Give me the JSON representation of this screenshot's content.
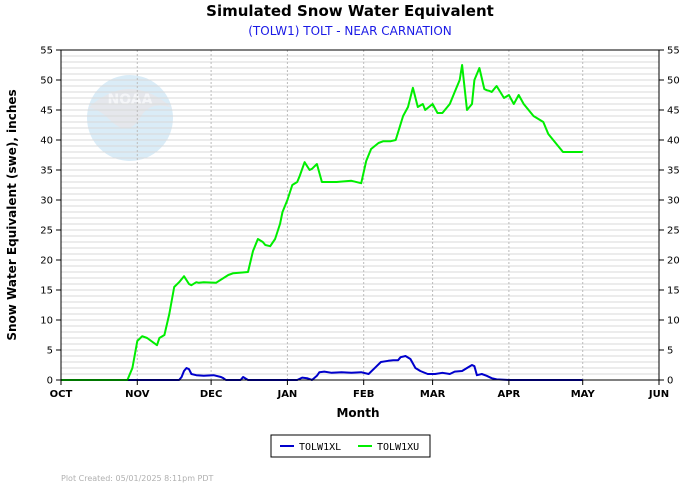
{
  "colors": {
    "lower": "#0000cc",
    "upper": "#00ee00",
    "subtitle": "#1a1ae6",
    "grid": "#d8d8d8",
    "logo_blue": "#cfe6f5",
    "logo_grey": "#e4e6ea"
  },
  "logo": {
    "text": "NOAA",
    "icon": "noaa-logo"
  },
  "footer": "Plot Created: 05/01/2025 8:11pm PDT",
  "chart_data": {
    "type": "line",
    "title": "Simulated Snow Water Equivalent",
    "subtitle": "(TOLW1) TOLT - NEAR CARNATION",
    "xlabel": "Month",
    "ylabel": "Snow Water Equivalent (swe),  inches",
    "ylim": [
      0,
      55
    ],
    "yticks": [
      0,
      5,
      10,
      15,
      20,
      25,
      30,
      35,
      40,
      45,
      50,
      55
    ],
    "month_ticks": [
      "OCT",
      "NOV",
      "DEC",
      "JAN",
      "FEB",
      "MAR",
      "APR",
      "MAY",
      "JUN"
    ],
    "month_starts": [
      "2024-10-01",
      "2024-11-01",
      "2024-12-01",
      "2025-01-01",
      "2025-02-01",
      "2025-03-01",
      "2025-04-01",
      "2025-05-01",
      "2025-06-01"
    ],
    "grid": true,
    "right_axis": true,
    "legend_position": "bottom",
    "series": [
      {
        "name": "TOLW1XL",
        "color": "#0000cc",
        "x": [
          "2024-10-01",
          "2024-11-18",
          "2024-11-19",
          "2024-11-20",
          "2024-11-21",
          "2024-11-22",
          "2024-11-23",
          "2024-11-25",
          "2024-11-28",
          "2024-12-02",
          "2024-12-05",
          "2024-12-06",
          "2024-12-07",
          "2024-12-08",
          "2024-12-13",
          "2024-12-14",
          "2024-12-16",
          "2025-01-05",
          "2025-01-07",
          "2025-01-09",
          "2025-01-11",
          "2025-01-13",
          "2025-01-14",
          "2025-01-16",
          "2025-01-19",
          "2025-01-23",
          "2025-01-27",
          "2025-01-31",
          "2025-02-03",
          "2025-02-06",
          "2025-02-08",
          "2025-02-11",
          "2025-02-13",
          "2025-02-15",
          "2025-02-16",
          "2025-02-18",
          "2025-02-20",
          "2025-02-22",
          "2025-02-24",
          "2025-02-27",
          "2025-03-02",
          "2025-03-05",
          "2025-03-08",
          "2025-03-10",
          "2025-03-13",
          "2025-03-15",
          "2025-03-17",
          "2025-03-18",
          "2025-03-19",
          "2025-03-21",
          "2025-03-23",
          "2025-03-25",
          "2025-03-27",
          "2025-04-01",
          "2025-05-01"
        ],
        "y": [
          0,
          0,
          0.5,
          1.5,
          2.0,
          1.8,
          1.0,
          0.8,
          0.7,
          0.8,
          0.5,
          0.3,
          0.0,
          0.0,
          0.0,
          0.5,
          0.0,
          0.0,
          0.4,
          0.3,
          0.0,
          0.7,
          1.3,
          1.4,
          1.2,
          1.3,
          1.2,
          1.3,
          1.0,
          2.2,
          3.0,
          3.2,
          3.3,
          3.3,
          3.8,
          4.0,
          3.5,
          2.0,
          1.5,
          1.0,
          1.0,
          1.2,
          1.0,
          1.4,
          1.5,
          2.0,
          2.5,
          2.3,
          0.8,
          1.0,
          0.7,
          0.3,
          0.1,
          0.0,
          0.0
        ]
      },
      {
        "name": "TOLW1XU",
        "color": "#00ee00",
        "x": [
          "2024-10-01",
          "2024-10-28",
          "2024-10-30",
          "2024-11-01",
          "2024-11-03",
          "2024-11-05",
          "2024-11-09",
          "2024-11-10",
          "2024-11-12",
          "2024-11-14",
          "2024-11-16",
          "2024-11-18",
          "2024-11-20",
          "2024-11-22",
          "2024-11-23",
          "2024-11-25",
          "2024-11-26",
          "2024-11-28",
          "2024-12-03",
          "2024-12-08",
          "2024-12-10",
          "2024-12-16",
          "2024-12-18",
          "2024-12-20",
          "2024-12-22",
          "2024-12-23",
          "2024-12-25",
          "2024-12-27",
          "2024-12-29",
          "2024-12-30",
          "2025-01-01",
          "2025-01-03",
          "2025-01-05",
          "2025-01-06",
          "2025-01-08",
          "2025-01-10",
          "2025-01-11",
          "2025-01-13",
          "2025-01-15",
          "2025-01-21",
          "2025-01-27",
          "2025-01-31",
          "2025-02-02",
          "2025-02-04",
          "2025-02-07",
          "2025-02-09",
          "2025-02-12",
          "2025-02-14",
          "2025-02-17",
          "2025-02-19",
          "2025-02-21",
          "2025-02-23",
          "2025-02-25",
          "2025-02-26",
          "2025-03-01",
          "2025-03-03",
          "2025-03-05",
          "2025-03-08",
          "2025-03-10",
          "2025-03-12",
          "2025-03-13",
          "2025-03-15",
          "2025-03-16",
          "2025-03-17",
          "2025-03-18",
          "2025-03-20",
          "2025-03-22",
          "2025-03-23",
          "2025-03-24",
          "2025-03-25",
          "2025-03-27",
          "2025-03-30",
          "2025-04-01",
          "2025-04-03",
          "2025-04-05",
          "2025-04-07",
          "2025-04-09",
          "2025-04-11",
          "2025-04-13",
          "2025-04-15",
          "2025-04-17",
          "2025-04-19",
          "2025-04-21",
          "2025-04-23",
          "2025-04-25",
          "2025-04-27",
          "2025-04-29",
          "2025-05-01"
        ],
        "y": [
          0,
          0,
          2,
          6.5,
          7.3,
          7.0,
          5.8,
          7.0,
          7.5,
          11,
          15.5,
          16.3,
          17.3,
          16.0,
          15.8,
          16.3,
          16.2,
          16.3,
          16.2,
          17.5,
          17.8,
          18.0,
          21.5,
          23.5,
          23.0,
          22.5,
          22.3,
          23.5,
          26.0,
          28.0,
          30.0,
          32.5,
          33.0,
          34.0,
          36.3,
          35.0,
          35.2,
          36.0,
          33.0,
          33.0,
          33.2,
          32.8,
          36.5,
          38.5,
          39.5,
          39.8,
          39.8,
          40.0,
          44.0,
          45.5,
          48.7,
          45.5,
          46.0,
          45.0,
          46.0,
          44.5,
          44.5,
          46.0,
          48.0,
          50.0,
          52.5,
          45.0,
          45.5,
          46.0,
          50.0,
          52.0,
          48.5,
          48.3,
          48.2,
          48.0,
          49.0,
          47.0,
          47.5,
          46.0,
          47.5,
          46.0,
          45.0,
          44.0,
          43.5,
          43.0,
          41.0,
          40.0,
          39.0,
          38.0,
          38.0,
          38.0,
          38.0,
          38.0
        ]
      }
    ]
  }
}
